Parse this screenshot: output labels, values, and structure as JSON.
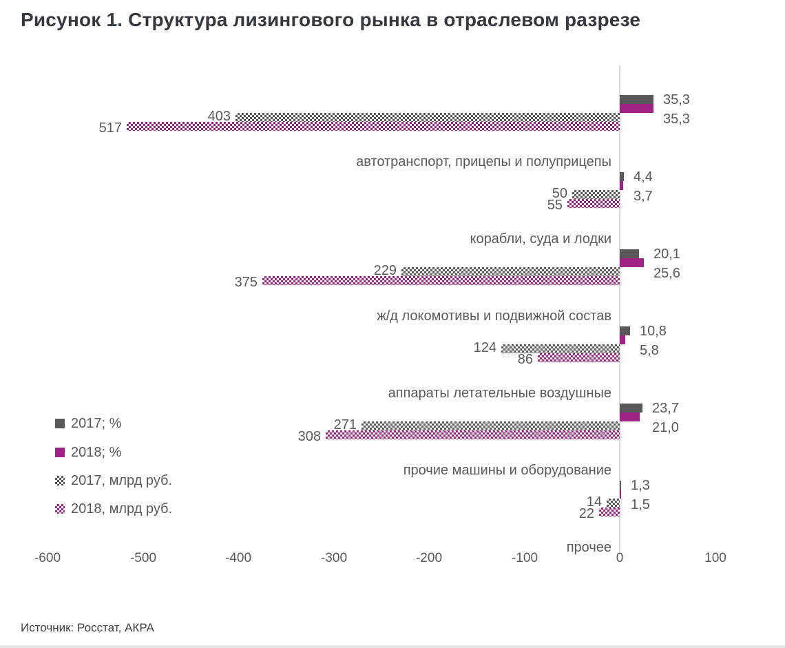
{
  "title": "Рисунок 1. Структура лизингового рынка в отраслевом разрезе",
  "source": "Источник: Росстат, АКРА",
  "colors": {
    "gray": "#595959",
    "magenta": "#9E2384",
    "axis_line": "#d9d9d9",
    "label_text": "#595959",
    "title_text": "#343940"
  },
  "legend": [
    {
      "label": "2017; %",
      "swatch": "solid-gray"
    },
    {
      "label": "2018; %",
      "swatch": "solid-magenta"
    },
    {
      "label": "2017, млрд руб.",
      "swatch": "pattern-gray"
    },
    {
      "label": "2018, млрд руб.",
      "swatch": "pattern-magenta"
    }
  ],
  "chart_data": {
    "type": "bar",
    "orientation": "horizontal",
    "title": "Рисунок 1. Структура лизингового рынка в отраслевом разрезе",
    "xlim": [
      -600,
      100
    ],
    "x_ticks": [
      -600,
      -500,
      -400,
      -300,
      -200,
      -100,
      0,
      100
    ],
    "x_tick_labels": [
      "-600",
      "-500",
      "-400",
      "-300",
      "-200",
      "-100",
      "0",
      "100"
    ],
    "grid": false,
    "legend_position": "middle-left",
    "categories": [
      "автотранспорт, прицепы и полуприцепы",
      "корабли, суда и лодки",
      "ж/д локомотивы и подвижной состав",
      "аппараты летательные воздушные",
      "прочие машины и оборудование",
      "прочее"
    ],
    "series": [
      {
        "name": "2017; %",
        "key": "2017-pct",
        "style": "solid-gray",
        "direction": "positive",
        "values": [
          35.3,
          4.4,
          20.1,
          10.8,
          23.7,
          1.3
        ],
        "labels": [
          "35,3",
          "4,4",
          "20,1",
          "10,8",
          "23,7",
          "1,3"
        ]
      },
      {
        "name": "2018; %",
        "key": "2018-pct",
        "style": "solid-magenta",
        "direction": "positive",
        "values": [
          35.3,
          3.7,
          25.6,
          5.8,
          21.0,
          1.5
        ],
        "labels": [
          "35,3",
          "3,7",
          "25,6",
          "5,8",
          "21,0",
          "1,5"
        ]
      },
      {
        "name": "2017, млрд руб.",
        "key": "2017-rub",
        "style": "pattern-gray",
        "direction": "negative",
        "values": [
          -403,
          -50,
          -229,
          -124,
          -271,
          -14
        ],
        "labels": [
          "403",
          "50",
          "229",
          "124",
          "271",
          "14"
        ]
      },
      {
        "name": "2018, млрд руб.",
        "key": "2018-rub",
        "style": "pattern-magenta",
        "direction": "negative",
        "values": [
          -517,
          -55,
          -375,
          -86,
          -308,
          -22
        ],
        "labels": [
          "517",
          "55",
          "375",
          "86",
          "308",
          "22"
        ]
      }
    ]
  }
}
